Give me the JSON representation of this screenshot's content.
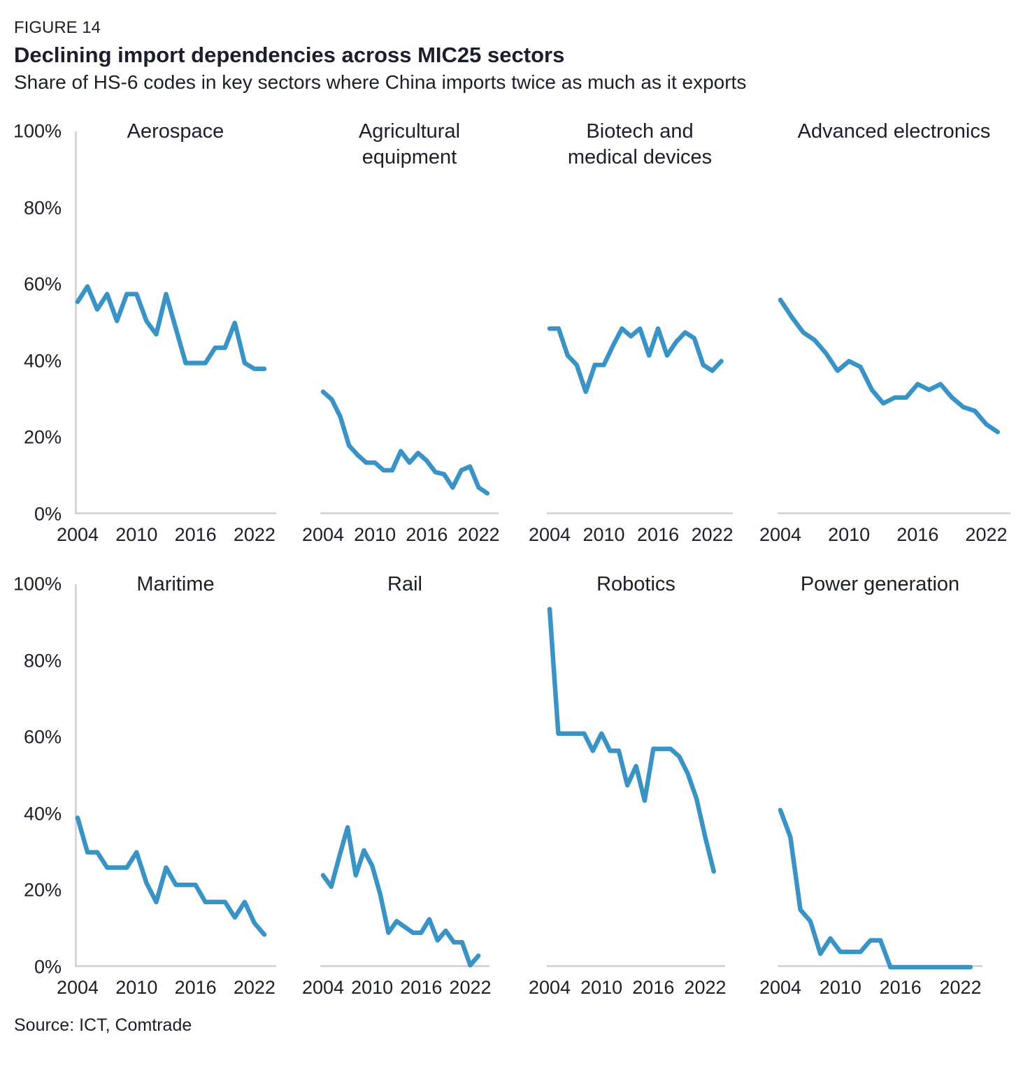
{
  "header": {
    "figure_label": "FIGURE 14",
    "title": "Declining import dependencies across MIC25 sectors",
    "subtitle": "Share of HS-6 codes in key sectors where China imports twice as much as it exports"
  },
  "axes": {
    "y_ticks": [
      {
        "label": "100%",
        "value": 100
      },
      {
        "label": "80%",
        "value": 80
      },
      {
        "label": "60%",
        "value": 60
      },
      {
        "label": "40%",
        "value": 40
      },
      {
        "label": "20%",
        "value": 20
      },
      {
        "label": "0%",
        "value": 0
      }
    ],
    "x_ticks": [
      {
        "label": "2004",
        "year": 2004
      },
      {
        "label": "2010",
        "year": 2010
      },
      {
        "label": "2016",
        "year": 2016
      },
      {
        "label": "2022",
        "year": 2022
      }
    ],
    "ylim": [
      0,
      100
    ],
    "grid": false,
    "legend": "none"
  },
  "chart_data": [
    {
      "type": "line",
      "title": "Aerospace",
      "unit": "%",
      "ylim": [
        0,
        100
      ],
      "years": [
        2004,
        2005,
        2006,
        2007,
        2008,
        2009,
        2010,
        2011,
        2012,
        2013,
        2014,
        2015,
        2016,
        2017,
        2018,
        2019,
        2020,
        2021,
        2022,
        2023
      ],
      "values": [
        55.5,
        59.5,
        53.5,
        57.5,
        50.5,
        57.5,
        57.5,
        50.5,
        47,
        57.5,
        48.5,
        39.5,
        39.5,
        39.5,
        43.5,
        43.5,
        50,
        39.5,
        38,
        38
      ]
    },
    {
      "type": "line",
      "title": "Agricultural\nequipment",
      "unit": "%",
      "ylim": [
        0,
        100
      ],
      "years": [
        2004,
        2005,
        2006,
        2007,
        2008,
        2009,
        2010,
        2011,
        2012,
        2013,
        2014,
        2015,
        2016,
        2017,
        2018,
        2019,
        2020,
        2021,
        2022,
        2023
      ],
      "values": [
        32,
        30,
        25.5,
        18,
        15.5,
        13.5,
        13.5,
        11.5,
        11.5,
        16.5,
        13.5,
        16,
        14,
        11,
        10.5,
        7,
        11.5,
        12.5,
        7,
        5.5
      ]
    },
    {
      "type": "line",
      "title": "Biotech and\nmedical devices",
      "unit": "%",
      "ylim": [
        0,
        100
      ],
      "years": [
        2004,
        2005,
        2006,
        2007,
        2008,
        2009,
        2010,
        2011,
        2012,
        2013,
        2014,
        2015,
        2016,
        2017,
        2018,
        2019,
        2020,
        2021,
        2022,
        2023
      ],
      "values": [
        48.5,
        48.5,
        41.5,
        39,
        32,
        39,
        39,
        44,
        48.5,
        46.5,
        48.5,
        41.5,
        48.5,
        41.5,
        45,
        47.5,
        46,
        39,
        37.5,
        40
      ]
    },
    {
      "type": "line",
      "title": "Advanced electronics",
      "unit": "%",
      "ylim": [
        0,
        100
      ],
      "years": [
        2004,
        2005,
        2006,
        2007,
        2008,
        2009,
        2010,
        2011,
        2012,
        2013,
        2014,
        2015,
        2016,
        2017,
        2018,
        2019,
        2020,
        2021,
        2022,
        2023
      ],
      "values": [
        56,
        51.5,
        47.5,
        45.5,
        42,
        37.5,
        40,
        38.5,
        32.5,
        29,
        30.5,
        30.5,
        34,
        32.5,
        34,
        30.5,
        28,
        27,
        23.5,
        21.5
      ]
    },
    {
      "type": "line",
      "title": "Maritime",
      "unit": "%",
      "ylim": [
        0,
        100
      ],
      "years": [
        2004,
        2005,
        2006,
        2007,
        2008,
        2009,
        2010,
        2011,
        2012,
        2013,
        2014,
        2015,
        2016,
        2017,
        2018,
        2019,
        2020,
        2021,
        2022,
        2023
      ],
      "values": [
        39,
        30,
        30,
        26,
        26,
        26,
        30,
        22,
        17,
        26,
        21.5,
        21.5,
        21.5,
        17,
        17,
        17,
        13,
        17,
        11.5,
        8.5
      ]
    },
    {
      "type": "line",
      "title": "Rail",
      "unit": "%",
      "ylim": [
        0,
        100
      ],
      "years": [
        2004,
        2005,
        2006,
        2007,
        2008,
        2009,
        2010,
        2011,
        2012,
        2013,
        2014,
        2015,
        2016,
        2017,
        2018,
        2019,
        2020,
        2021,
        2022,
        2023
      ],
      "values": [
        24,
        21,
        29,
        36.5,
        24,
        30.5,
        26.5,
        19,
        9,
        12,
        10.5,
        9,
        9,
        12.5,
        7,
        9.5,
        6.5,
        6.5,
        0.5,
        3
      ]
    },
    {
      "type": "line",
      "title": "Robotics",
      "unit": "%",
      "ylim": [
        0,
        100
      ],
      "years": [
        2004,
        2005,
        2006,
        2007,
        2008,
        2009,
        2010,
        2011,
        2012,
        2013,
        2014,
        2015,
        2016,
        2017,
        2018,
        2019,
        2020,
        2021,
        2022,
        2023
      ],
      "values": [
        93.5,
        61,
        61,
        61,
        61,
        56.5,
        61,
        56.5,
        56.5,
        47.5,
        52.5,
        43.5,
        57,
        57,
        57,
        55,
        50.5,
        44,
        34,
        25
      ]
    },
    {
      "type": "line",
      "title": "Power generation",
      "unit": "%",
      "ylim": [
        0,
        100
      ],
      "years": [
        2004,
        2005,
        2006,
        2007,
        2008,
        2009,
        2010,
        2011,
        2012,
        2013,
        2014,
        2015,
        2016,
        2017,
        2018,
        2019,
        2020,
        2021,
        2022,
        2023
      ],
      "values": [
        41,
        34,
        15,
        12,
        3.5,
        7.5,
        4,
        4,
        4,
        7,
        7,
        0,
        0,
        0,
        0,
        0,
        0,
        0,
        0,
        0
      ]
    }
  ],
  "source": "Source: ICT, Comtrade",
  "colors": {
    "line": "#3a93c5",
    "axis": "#d6d6d6",
    "text": "#1b1e2b"
  }
}
